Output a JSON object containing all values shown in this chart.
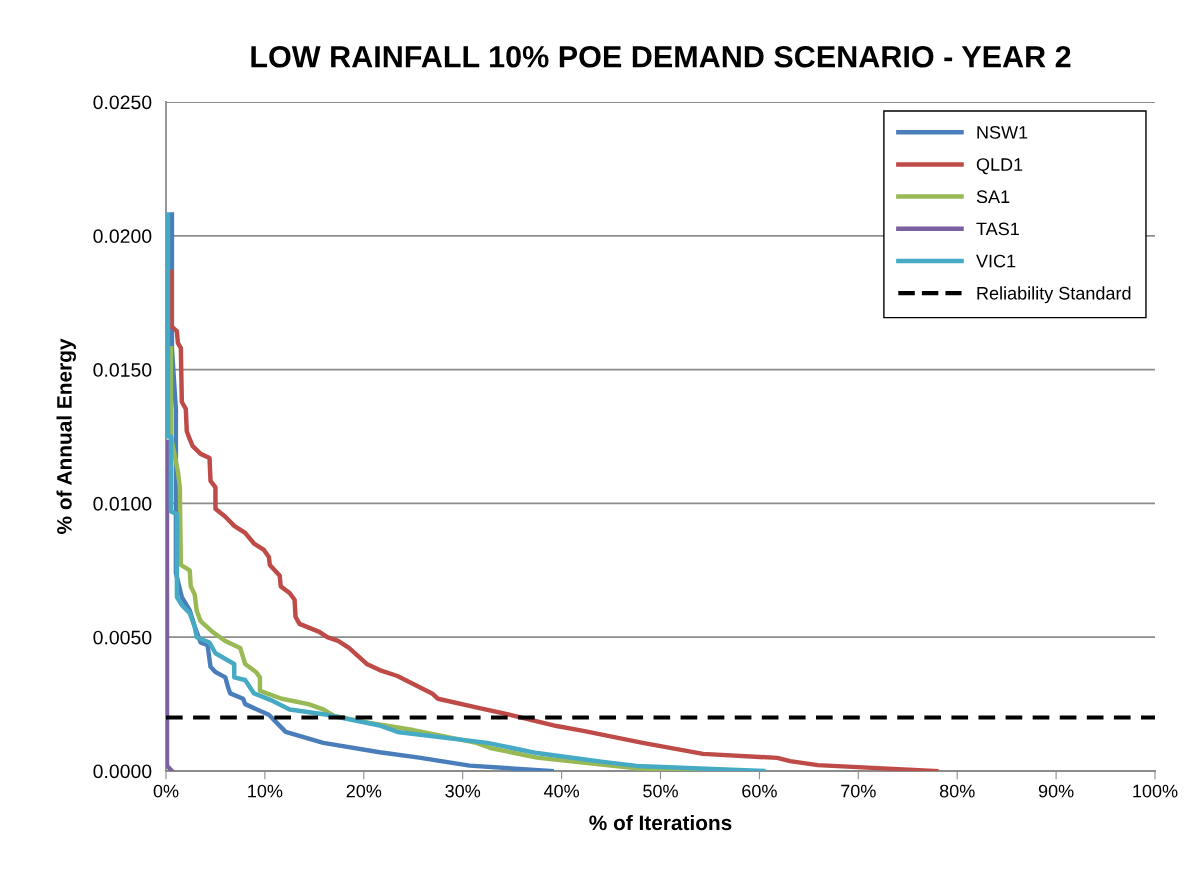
{
  "chart_data": {
    "type": "line",
    "title": "LOW RAINFALL 10% POE DEMAND SCENARIO - YEAR 2",
    "xlabel": "% of Iterations",
    "ylabel": "% of Annual Energy",
    "xlim": [
      0,
      100
    ],
    "xticks": [
      {
        "value": 0,
        "label": "0%"
      },
      {
        "value": 10,
        "label": "10%"
      },
      {
        "value": 20,
        "label": "20%"
      },
      {
        "value": 30,
        "label": "30%"
      },
      {
        "value": 40,
        "label": "40%"
      },
      {
        "value": 50,
        "label": "50%"
      },
      {
        "value": 60,
        "label": "60%"
      },
      {
        "value": 70,
        "label": "70%"
      },
      {
        "value": 80,
        "label": "80%"
      },
      {
        "value": 90,
        "label": "90%"
      },
      {
        "value": 100,
        "label": "100%"
      }
    ],
    "ylim": [
      0,
      0.025
    ],
    "yticks": [
      {
        "value": 0,
        "label": "0.0000"
      },
      {
        "value": 0.005,
        "label": "0.0050"
      },
      {
        "value": 0.01,
        "label": "0.0100"
      },
      {
        "value": 0.015,
        "label": "0.0150"
      },
      {
        "value": 0.02,
        "label": "0.0200"
      },
      {
        "value": 0.025,
        "label": "0.0250"
      }
    ],
    "grid": "y",
    "legend": "top right",
    "line_style": "solid",
    "marker": "none",
    "series": [
      {
        "name": "NSW1",
        "color": "#4a7ebb",
        "x": [
          0.6,
          0.6,
          1.0,
          1.0,
          1.6,
          2.4,
          2.9,
          3.5,
          4.2,
          4.5,
          5.0,
          6.0,
          6.3,
          6.5,
          7.8,
          8.0,
          10.4,
          12.1,
          15.9,
          21.6,
          25.6,
          30.7,
          39.0
        ],
        "values": [
          0.0208,
          0.0158,
          0.0135,
          0.0074,
          0.0065,
          0.006,
          0.0054,
          0.0048,
          0.0047,
          0.0039,
          0.0037,
          0.0035,
          0.0031,
          0.0029,
          0.0027,
          0.0025,
          0.0021,
          0.00146,
          0.00105,
          0.0007,
          0.0005,
          0.0002,
          0.0
        ]
      },
      {
        "name": "QLD1",
        "color": "#be4b48",
        "x": [
          0.5,
          0.5,
          1.1,
          1.2,
          1.5,
          1.6,
          2.0,
          2.1,
          2.4,
          2.7,
          3.5,
          4.4,
          4.5,
          5.0,
          5.0,
          6.0,
          6.9,
          8.0,
          8.9,
          9.9,
          10.4,
          10.5,
          11.5,
          11.6,
          12.5,
          13.0,
          13.1,
          13.5,
          15.5,
          16.3,
          17.4,
          18.5,
          20.3,
          21.6,
          23.4,
          26.9,
          27.5,
          31.7,
          34.8,
          39.5,
          42.2,
          48.2,
          54.3,
          61.8,
          63.1,
          65.9,
          77.9
        ],
        "values": [
          0.01865,
          0.01663,
          0.01644,
          0.016,
          0.0158,
          0.01379,
          0.01353,
          0.0127,
          0.0124,
          0.01214,
          0.01185,
          0.0117,
          0.01084,
          0.0106,
          0.0098,
          0.0095,
          0.00916,
          0.0089,
          0.0085,
          0.00826,
          0.008,
          0.0077,
          0.0073,
          0.0069,
          0.00665,
          0.0064,
          0.00576,
          0.0055,
          0.0052,
          0.005,
          0.00486,
          0.0046,
          0.004,
          0.00377,
          0.00355,
          0.0029,
          0.0027,
          0.00235,
          0.0021,
          0.00168,
          0.0015,
          0.00105,
          0.00064,
          0.00049,
          0.00037,
          0.00022,
          0.0
        ]
      },
      {
        "name": "SA1",
        "color": "#98b954",
        "x": [
          0.5,
          0.5,
          1.2,
          1.4,
          1.5,
          2.4,
          2.5,
          2.9,
          3.1,
          3.5,
          4.7,
          6.0,
          7.5,
          8.0,
          9.1,
          9.5,
          9.5,
          10.2,
          11.7,
          14.4,
          15.9,
          17.0,
          20.6,
          25.0,
          31.4,
          32.8,
          37.5,
          47.6,
          54.3
        ],
        "values": [
          0.0158,
          0.0125,
          0.0112,
          0.0106,
          0.0077,
          0.0075,
          0.0069,
          0.0066,
          0.006,
          0.0056,
          0.0052,
          0.00486,
          0.0046,
          0.004,
          0.0037,
          0.0035,
          0.003,
          0.0029,
          0.0027,
          0.0025,
          0.0023,
          0.00206,
          0.0018,
          0.00153,
          0.00105,
          0.00086,
          0.0005,
          0.0001,
          0.0
        ]
      },
      {
        "name": "TAS1",
        "color": "#7d60a0",
        "x": [
          0.1,
          0.1,
          0.6
        ],
        "values": [
          0.0123,
          0.0002,
          0.0
        ]
      },
      {
        "name": "VIC1",
        "color": "#46aac5",
        "x": [
          0.2,
          0.2,
          0.5,
          0.5,
          1.1,
          1.1,
          1.6,
          2.4,
          2.9,
          3.1,
          4.4,
          5.0,
          6.9,
          6.9,
          8.0,
          8.9,
          10.6,
          12.5,
          16.3,
          21.6,
          23.4,
          32.5,
          37.5,
          44.2,
          47.6,
          60.4
        ],
        "values": [
          0.0208,
          0.0125,
          0.0125,
          0.0097,
          0.0096,
          0.0065,
          0.0062,
          0.0059,
          0.0054,
          0.005,
          0.0048,
          0.0044,
          0.004,
          0.0035,
          0.0034,
          0.0029,
          0.00265,
          0.0023,
          0.0021,
          0.0017,
          0.00146,
          0.00105,
          0.00067,
          0.00034,
          0.00019,
          0.0
        ]
      }
    ],
    "ref_lines": [
      {
        "axis": "y",
        "value": 0.002,
        "label": "Reliability Standard",
        "color": "#000000",
        "line_style": "dashed"
      }
    ]
  }
}
